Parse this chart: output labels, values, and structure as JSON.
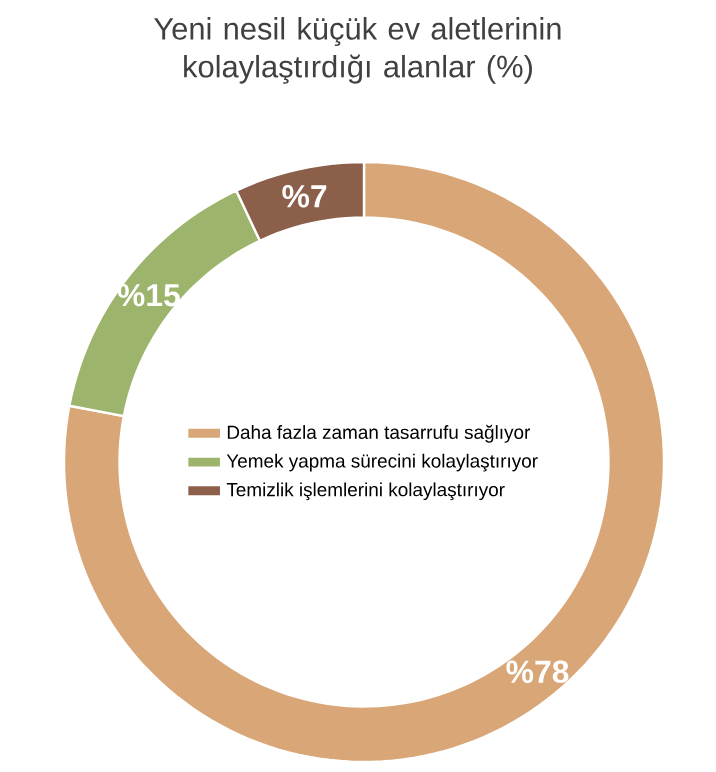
{
  "chart_data": {
    "type": "donut",
    "title": "Yeni nesil küçük ev aletlerinin kolaylaştırdığı alanlar (%)",
    "categories": [
      "Daha fazla zaman tasarrufu sağlıyor",
      "Yemek yapma sürecini kolaylaştırıyor",
      "Temizlik işlemlerini kolaylaştırıyor"
    ],
    "values": [
      78,
      15,
      7
    ],
    "colors": [
      "#d9a677",
      "#9db46c",
      "#8c5f4b"
    ],
    "value_labels": [
      "%78",
      "%15",
      "%7"
    ],
    "legend": "center"
  }
}
